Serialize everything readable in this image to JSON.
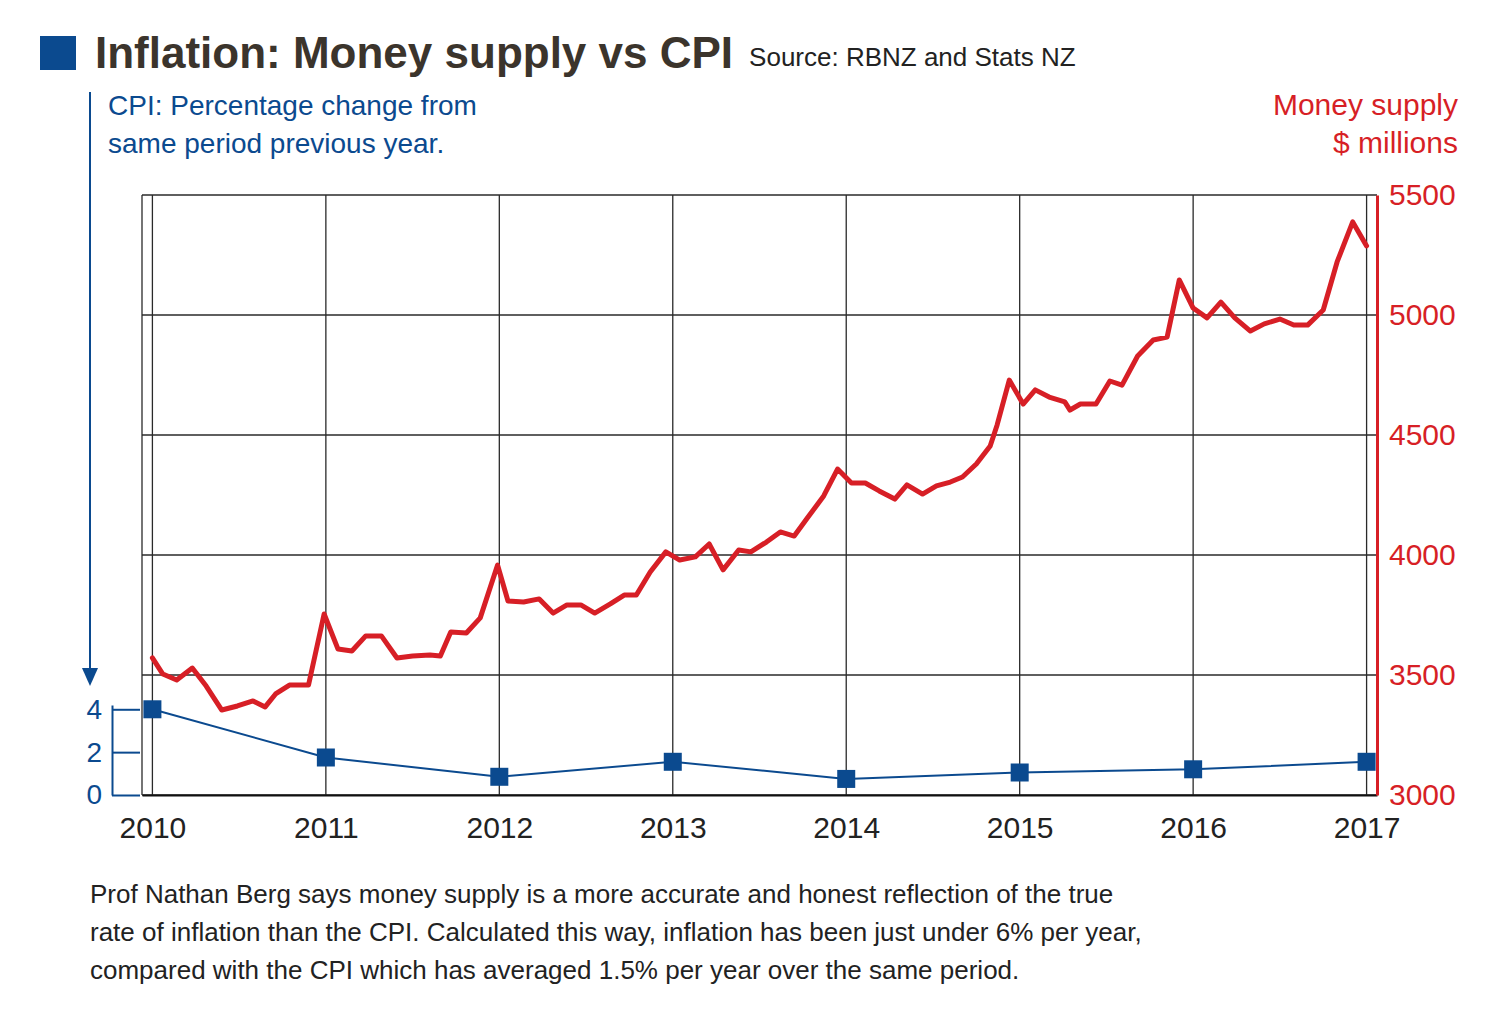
{
  "chart_data": {
    "type": "line",
    "title": "Inflation: Money supply vs CPI",
    "source": "Source: RBNZ and Stats NZ",
    "ylabel": [
      "CPI: Percentage change from",
      "same period previous year."
    ],
    "y2label": [
      "Money supply",
      "$ millions"
    ],
    "caption": [
      "Prof Nathan Berg says money supply is a more accurate and honest reflection of the true",
      "rate of inflation than the CPI. Calculated this way, inflation has been just under 6% per year,",
      "compared with the CPI which has averaged 1.5% per year over the same period."
    ],
    "xlim": [
      2009.94,
      2017.06
    ],
    "xticks": [
      2010,
      2011,
      2012,
      2013,
      2014,
      2015,
      2016,
      2017
    ],
    "ylim": [
      0,
      4.2
    ],
    "yticks": [
      0,
      2,
      4
    ],
    "y2lim": [
      3000,
      5500
    ],
    "y2ticks": [
      3000,
      3500,
      4000,
      4500,
      5000,
      5500
    ],
    "grid": true,
    "series": [
      {
        "color": "#0b4a8f",
        "marker": "square",
        "axis": "y",
        "x": [
          2010,
          2011,
          2012,
          2013,
          2014,
          2015,
          2016,
          2017
        ],
        "values": [
          4.0,
          1.75,
          0.85,
          1.55,
          0.75,
          1.05,
          1.2,
          1.55
        ]
      },
      {
        "color": "#d71f26",
        "marker": "none",
        "axis": "y2",
        "x": [
          2010.0,
          2010.06,
          2010.14,
          2010.23,
          2010.31,
          2010.4,
          2010.49,
          2010.58,
          2010.65,
          2010.71,
          2010.79,
          2010.9,
          2010.99,
          2011.07,
          2011.15,
          2011.23,
          2011.32,
          2011.41,
          2011.5,
          2011.6,
          2011.66,
          2011.72,
          2011.81,
          2011.89,
          2011.99,
          2012.05,
          2012.14,
          2012.23,
          2012.31,
          2012.39,
          2012.47,
          2012.55,
          2012.64,
          2012.72,
          2012.79,
          2012.87,
          2012.96,
          2013.04,
          2013.13,
          2013.21,
          2013.29,
          2013.38,
          2013.45,
          2013.54,
          2013.62,
          2013.7,
          2013.78,
          2013.87,
          2013.95,
          2014.03,
          2014.11,
          2014.19,
          2014.28,
          2014.35,
          2014.44,
          2014.52,
          2014.6,
          2014.67,
          2014.75,
          2014.83,
          2014.87,
          2014.94,
          2015.02,
          2015.09,
          2015.17,
          2015.26,
          2015.29,
          2015.35,
          2015.44,
          2015.52,
          2015.59,
          2015.68,
          2015.77,
          2015.85,
          2015.92,
          2016.0,
          2016.08,
          2016.16,
          2016.24,
          2016.33,
          2016.41,
          2016.5,
          2016.58,
          2016.66,
          2016.75,
          2016.83,
          2016.92,
          2017.0
        ],
        "values": [
          3571,
          3504,
          3479,
          3529,
          3454,
          3354,
          3371,
          3392,
          3367,
          3421,
          3458,
          3458,
          3754,
          3608,
          3600,
          3663,
          3663,
          3571,
          3579,
          3583,
          3579,
          3679,
          3675,
          3738,
          3958,
          3808,
          3804,
          3817,
          3758,
          3792,
          3792,
          3758,
          3796,
          3833,
          3833,
          3929,
          4013,
          3979,
          3992,
          4046,
          3938,
          4021,
          4013,
          4054,
          4096,
          4079,
          4158,
          4246,
          4358,
          4300,
          4300,
          4267,
          4233,
          4292,
          4254,
          4288,
          4304,
          4325,
          4379,
          4454,
          4542,
          4729,
          4629,
          4688,
          4658,
          4638,
          4604,
          4629,
          4629,
          4725,
          4708,
          4829,
          4896,
          4908,
          5146,
          5029,
          4988,
          5054,
          4988,
          4933,
          4963,
          4983,
          4958,
          4958,
          5021,
          5221,
          5388,
          5288
        ]
      }
    ]
  }
}
